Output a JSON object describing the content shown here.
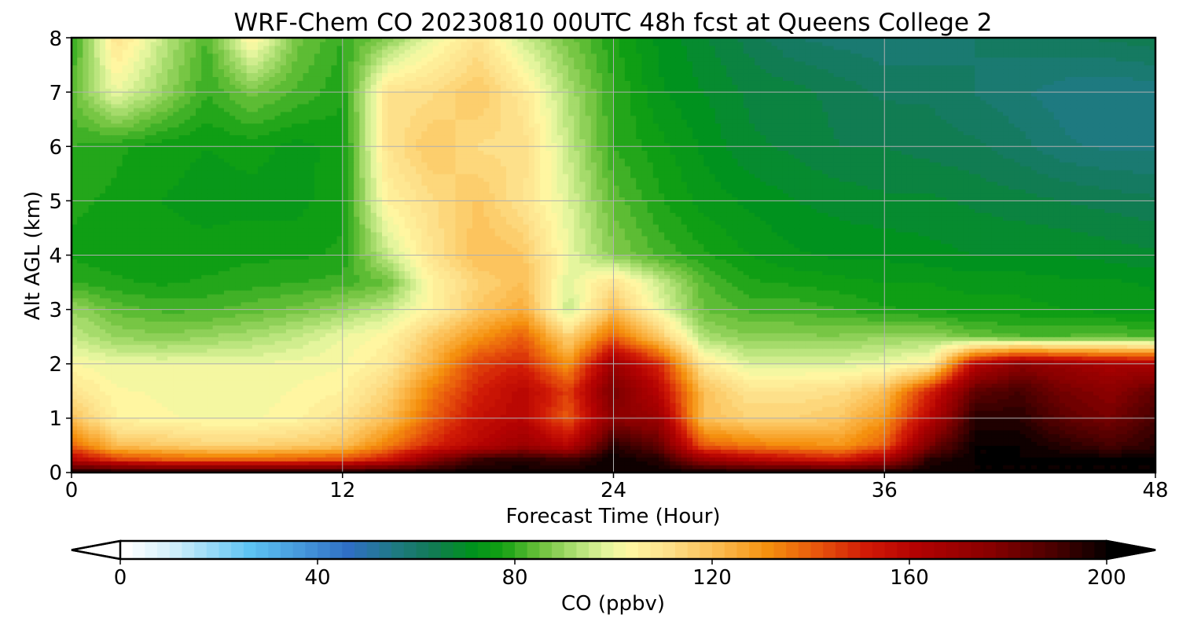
{
  "chart_data": {
    "type": "heatmap",
    "title": "WRF-Chem CO  20230810 00UTC 48h fcst at Queens College 2",
    "xlabel": "Forecast Time (Hour)",
    "ylabel": "Alt AGL (km)",
    "xlim": [
      0,
      48
    ],
    "ylim": [
      0,
      8
    ],
    "xticks": [
      "0",
      "12",
      "24",
      "36",
      "48"
    ],
    "yticks": [
      "0",
      "1",
      "2",
      "3",
      "4",
      "5",
      "6",
      "7",
      "8"
    ],
    "grid": true,
    "x_hours": [
      0,
      2,
      4,
      6,
      8,
      10,
      12,
      14,
      16,
      18,
      20,
      22,
      24,
      26,
      28,
      30,
      32,
      34,
      36,
      38,
      40,
      42,
      44,
      46,
      48
    ],
    "y_km": [
      0,
      0.25,
      0.5,
      1,
      1.5,
      2,
      2.5,
      3,
      3.5,
      4,
      5,
      6,
      7,
      8
    ],
    "co_ppbv": [
      [
        200,
        200,
        200,
        200,
        200,
        200,
        200,
        200,
        200,
        200,
        200,
        200,
        200,
        200,
        200,
        200,
        200,
        200,
        200,
        200,
        200,
        200,
        200,
        200,
        200
      ],
      [
        160,
        145,
        140,
        138,
        138,
        140,
        142,
        152,
        175,
        192,
        195,
        190,
        200,
        195,
        170,
        160,
        155,
        150,
        165,
        195,
        200,
        200,
        200,
        200,
        200
      ],
      [
        140,
        120,
        118,
        115,
        115,
        117,
        120,
        135,
        150,
        160,
        170,
        160,
        195,
        185,
        140,
        135,
        132,
        130,
        140,
        180,
        200,
        200,
        195,
        190,
        195
      ],
      [
        120,
        105,
        103,
        102,
        102,
        104,
        110,
        120,
        140,
        155,
        160,
        140,
        175,
        170,
        120,
        115,
        115,
        118,
        130,
        160,
        195,
        195,
        185,
        180,
        190
      ],
      [
        110,
        103,
        102,
        101,
        101,
        103,
        105,
        115,
        135,
        150,
        160,
        145,
        180,
        160,
        120,
        110,
        110,
        112,
        120,
        150,
        185,
        190,
        180,
        175,
        185
      ],
      [
        103,
        100,
        100,
        100,
        100,
        101,
        102,
        108,
        125,
        145,
        150,
        130,
        170,
        150,
        108,
        98,
        98,
        98,
        100,
        105,
        160,
        175,
        170,
        165,
        165
      ],
      [
        95,
        90,
        88,
        90,
        92,
        95,
        100,
        104,
        118,
        130,
        140,
        115,
        140,
        118,
        92,
        88,
        88,
        88,
        90,
        90,
        85,
        83,
        83,
        84,
        82
      ],
      [
        90,
        84,
        82,
        82,
        84,
        86,
        90,
        95,
        105,
        118,
        125,
        95,
        120,
        100,
        85,
        82,
        82,
        80,
        78,
        77,
        76,
        76,
        75,
        74,
        74
      ],
      [
        80,
        78,
        77,
        78,
        79,
        80,
        81,
        85,
        105,
        115,
        120,
        98,
        110,
        96,
        83,
        78,
        77,
        76,
        75,
        75,
        74,
        74,
        73,
        73,
        72
      ],
      [
        77,
        76,
        76,
        76,
        77,
        77,
        78,
        95,
        110,
        120,
        118,
        100,
        88,
        82,
        78,
        75,
        73,
        72,
        72,
        71,
        70,
        70,
        70,
        69,
        68
      ],
      [
        78,
        77,
        75,
        74,
        74,
        74,
        77,
        105,
        112,
        118,
        110,
        98,
        84,
        78,
        74,
        72,
        70,
        69,
        68,
        68,
        67,
        66,
        65,
        64,
        63
      ],
      [
        80,
        78,
        76,
        75,
        76,
        74,
        76,
        110,
        118,
        112,
        112,
        95,
        80,
        76,
        72,
        68,
        67,
        65,
        65,
        64,
        63,
        61,
        58,
        57,
        57
      ],
      [
        84,
        100,
        90,
        80,
        86,
        82,
        78,
        110,
        112,
        118,
        108,
        92,
        80,
        73,
        70,
        67,
        66,
        64,
        62,
        62,
        60,
        58,
        56,
        55,
        56
      ],
      [
        78,
        110,
        95,
        82,
        105,
        86,
        80,
        88,
        100,
        110,
        96,
        86,
        78,
        72,
        68,
        64,
        60,
        59,
        58,
        58,
        60,
        61,
        62,
        63,
        64
      ]
    ]
  },
  "colorbar": {
    "label": "CO  (ppbv)",
    "min": 0,
    "max": 200,
    "step": 2.5,
    "tick_values": [
      0,
      40,
      80,
      120,
      160,
      200
    ],
    "ticks": [
      "0",
      "40",
      "80",
      "120",
      "160",
      "200"
    ],
    "extend": "both",
    "under_color": "#ffffff",
    "over_color": "#000000",
    "anchors": [
      {
        "v": 0,
        "c": "#ffffff"
      },
      {
        "v": 10,
        "c": "#cdeefa"
      },
      {
        "v": 25,
        "c": "#5ec4f3"
      },
      {
        "v": 45,
        "c": "#2f6fc4"
      },
      {
        "v": 55,
        "c": "#1e7a80"
      },
      {
        "v": 62,
        "c": "#127a55"
      },
      {
        "v": 70,
        "c": "#00921e"
      },
      {
        "v": 76,
        "c": "#12a012"
      },
      {
        "v": 84,
        "c": "#6ec23c"
      },
      {
        "v": 92,
        "c": "#b7e37b"
      },
      {
        "v": 98,
        "c": "#e8f7a0"
      },
      {
        "v": 102,
        "c": "#fff7a2"
      },
      {
        "v": 110,
        "c": "#fde08a"
      },
      {
        "v": 120,
        "c": "#fbbb4f"
      },
      {
        "v": 130,
        "c": "#f5900e"
      },
      {
        "v": 140,
        "c": "#e8560c"
      },
      {
        "v": 150,
        "c": "#d01a06"
      },
      {
        "v": 160,
        "c": "#b30202"
      },
      {
        "v": 175,
        "c": "#880000"
      },
      {
        "v": 188,
        "c": "#4a0000"
      },
      {
        "v": 200,
        "c": "#000000"
      }
    ]
  }
}
